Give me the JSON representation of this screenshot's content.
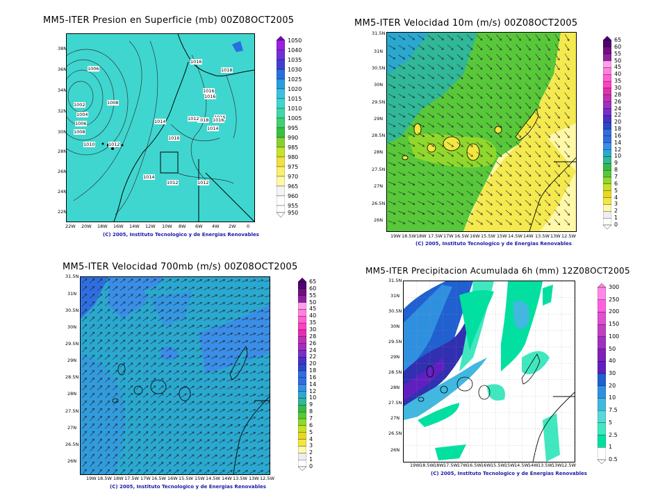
{
  "panels": {
    "pressure": {
      "title": "MM5-ITER Presion en Superficie (mb) 00Z08OCT2005",
      "credit": "(C) 2005, Instituto Tecnologico y de Energias Renovables",
      "lon_ticks": [
        "22W",
        "20W",
        "18W",
        "16W",
        "14W",
        "12W",
        "10W",
        "8W",
        "6W",
        "4W",
        "2W",
        "0"
      ],
      "lat_ticks": [
        "38N",
        "36N",
        "34N",
        "32N",
        "30N",
        "28N",
        "26N",
        "24N",
        "22N"
      ],
      "contour_labels": [
        "1006",
        "1008",
        "1002",
        "1004",
        "1006",
        "1008",
        "1010",
        "1012",
        "1014",
        "1016",
        "1016",
        "1018",
        "1016",
        "1018",
        "1016",
        "1014",
        "1012",
        "1014",
        "1012",
        "1016",
        "1016",
        "1012",
        "1014"
      ],
      "colorbar": [
        "1050",
        "1040",
        "1035",
        "1030",
        "1025",
        "1020",
        "1015",
        "1010",
        "1005",
        "995",
        "990",
        "985",
        "980",
        "975",
        "970",
        "965",
        "960",
        "955",
        "950"
      ]
    },
    "wind10m": {
      "title": "MM5-ITER Velocidad 10m (m/s) 00Z08OCT2005",
      "credit": "(C) 2005, Instituto Tecnologico y de Energias Renovables",
      "lon_ticks": [
        "19W",
        "18.5W",
        "18W",
        "17.5W",
        "17W",
        "16.5W",
        "16W",
        "15.5W",
        "15W",
        "14.5W",
        "14W",
        "13.5W",
        "13W",
        "12.5W"
      ],
      "lat_ticks": [
        "31.5N",
        "31N",
        "30.5N",
        "30N",
        "29.5N",
        "29N",
        "28.5N",
        "28N",
        "27.5N",
        "27N",
        "26.5N",
        "26N"
      ],
      "extra_label": "10",
      "colorbar": [
        "65",
        "60",
        "55",
        "50",
        "45",
        "40",
        "35",
        "30",
        "28",
        "26",
        "24",
        "22",
        "20",
        "18",
        "16",
        "14",
        "12",
        "10",
        "9",
        "8",
        "7",
        "6",
        "5",
        "4",
        "3",
        "2",
        "1",
        "0"
      ]
    },
    "wind700": {
      "title": "MM5-ITER Velocidad 700mb (m/s) 00Z08OCT2005",
      "credit": "(C) 2005, Instituto Tecnologico y de Energias Renovables",
      "lon_ticks": [
        "19W",
        "18.5W",
        "18W",
        "17.5W",
        "17W",
        "16.5W",
        "16W",
        "15.5W",
        "15W",
        "14.5W",
        "14W",
        "13.5W",
        "13W",
        "12.5W"
      ],
      "lat_ticks": [
        "31.5N",
        "31N",
        "30.5N",
        "30N",
        "29.5N",
        "29N",
        "28.5N",
        "28N",
        "27.5N",
        "27N",
        "26.5N",
        "26N"
      ],
      "colorbar": [
        "65",
        "60",
        "55",
        "50",
        "45",
        "40",
        "35",
        "30",
        "28",
        "26",
        "24",
        "22",
        "20",
        "18",
        "16",
        "14",
        "12",
        "10",
        "9",
        "8",
        "7",
        "6",
        "5",
        "4",
        "3",
        "2",
        "1",
        "0"
      ]
    },
    "precip": {
      "title": "MM5-ITER Precipitacion Acumulada 6h (mm) 12Z08OCT2005",
      "credit": "(C) 2005, Instituto Tecnologico y de Energias Renovables",
      "lon_ticks": [
        "19W",
        "18.5W",
        "18W",
        "17.5W",
        "17W",
        "16.5W",
        "16W",
        "15.5W",
        "15W",
        "14.5W",
        "14W",
        "13.5W",
        "13W",
        "12.5W"
      ],
      "lat_ticks": [
        "31.5N",
        "31N",
        "30.5N",
        "30N",
        "29.5N",
        "29N",
        "28.5N",
        "28N",
        "27.5N",
        "27N",
        "26.5N",
        "26N"
      ],
      "colorbar": [
        "300",
        "250",
        "200",
        "150",
        "100",
        "50",
        "40",
        "30",
        "20",
        "10",
        "7.5",
        "5",
        "2.5",
        "1",
        "0.5"
      ]
    }
  },
  "colors": {
    "pressure_fill": "#3fd6d0",
    "wind_scale": [
      "#ffffff",
      "#eeeeee",
      "#fff8a8",
      "#f2e640",
      "#e8d820",
      "#c6e028",
      "#90d82c",
      "#58c83a",
      "#38b848",
      "#30b898",
      "#2aa8d0",
      "#3a8ee8",
      "#2f6ee0",
      "#2a48c8",
      "#4a30c8",
      "#7830c8",
      "#a030c0",
      "#c030b0",
      "#e030b0",
      "#ff40c0",
      "#ff60d0",
      "#ff80e0",
      "#ffa0e8",
      "#9020a0",
      "#701080",
      "#500070"
    ],
    "precip_scale": [
      "#ffffff",
      "#00e0a0",
      "#40e8c0",
      "#58d8d8",
      "#40b8e0",
      "#3090e0",
      "#2060d0",
      "#3030b0",
      "#6020c0",
      "#8020b8",
      "#a030c0",
      "#c040c0",
      "#e050d0",
      "#ff60e0",
      "#ff88e8"
    ]
  }
}
